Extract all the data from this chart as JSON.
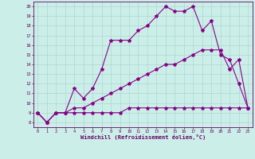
{
  "xlabel": "Windchill (Refroidissement éolien,°C)",
  "background_color": "#cceee8",
  "grid_color": "#aad8d0",
  "line_color": "#880088",
  "x_ticks": [
    0,
    1,
    2,
    3,
    4,
    5,
    6,
    7,
    8,
    9,
    10,
    11,
    12,
    13,
    14,
    15,
    16,
    17,
    18,
    19,
    20,
    21,
    22,
    23
  ],
  "y_ticks": [
    8,
    9,
    10,
    11,
    12,
    13,
    14,
    15,
    16,
    17,
    18,
    19,
    20
  ],
  "xlim": [
    -0.5,
    23.5
  ],
  "ylim": [
    7.5,
    20.5
  ],
  "series1": [
    9.0,
    8.0,
    9.0,
    9.0,
    11.5,
    10.5,
    11.5,
    13.5,
    16.5,
    16.5,
    16.5,
    17.5,
    18.0,
    19.0,
    20.0,
    19.5,
    19.5,
    20.0,
    17.5,
    18.5,
    15.0,
    14.5,
    12.0,
    9.5
  ],
  "series2": [
    9.0,
    8.0,
    9.0,
    9.0,
    9.0,
    9.0,
    9.0,
    9.0,
    9.0,
    9.0,
    9.5,
    9.5,
    9.5,
    9.5,
    9.5,
    9.5,
    9.5,
    9.5,
    9.5,
    9.5,
    9.5,
    9.5,
    9.5,
    9.5
  ],
  "series3": [
    9.0,
    8.0,
    9.0,
    9.0,
    9.5,
    9.5,
    10.0,
    10.5,
    11.0,
    11.5,
    12.0,
    12.5,
    13.0,
    13.5,
    14.0,
    14.0,
    14.5,
    15.0,
    15.5,
    15.5,
    15.5,
    13.5,
    14.5,
    9.5
  ]
}
